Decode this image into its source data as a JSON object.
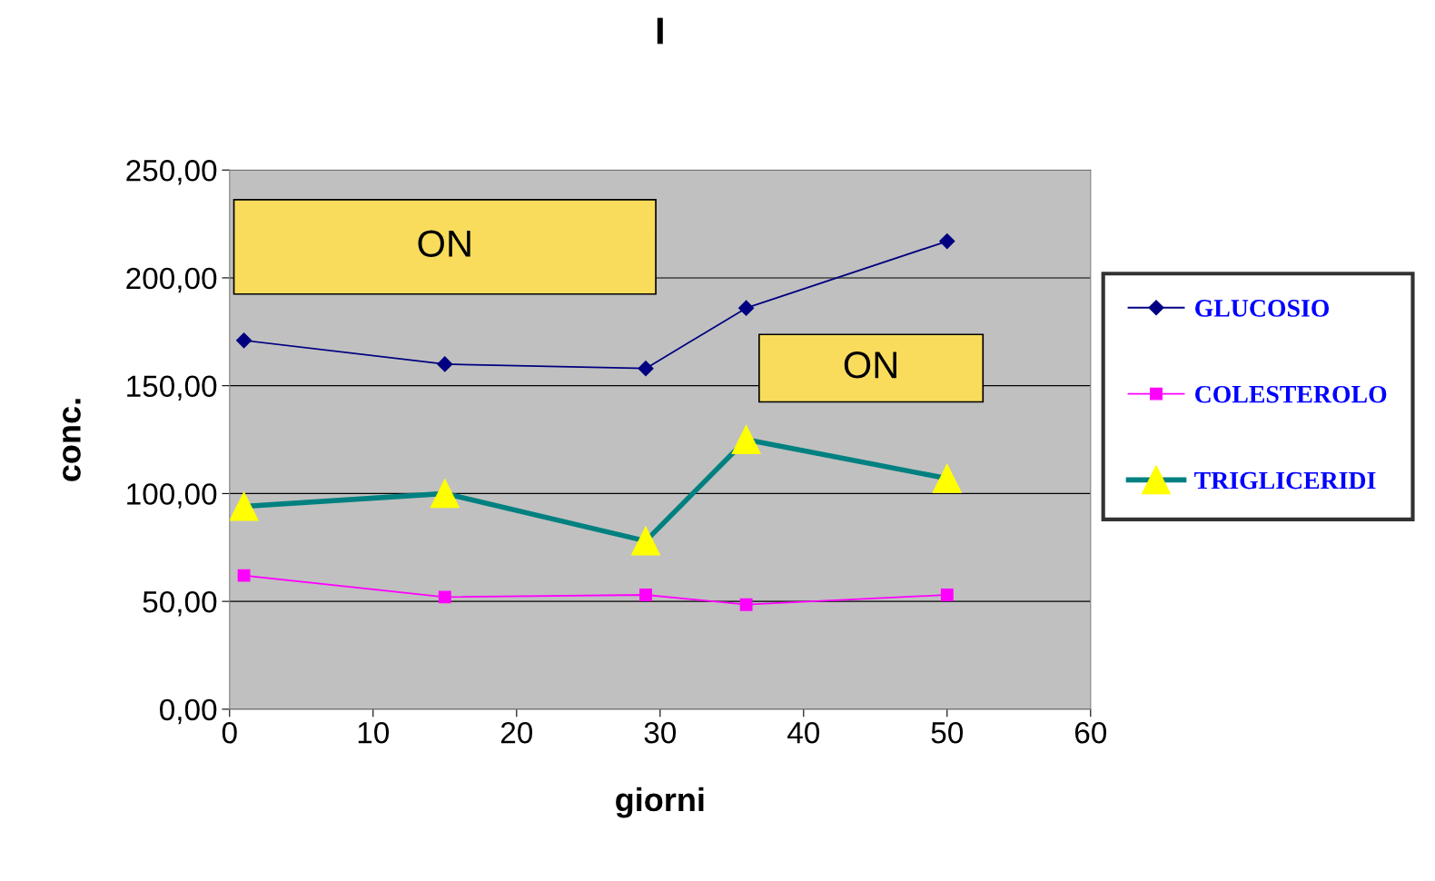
{
  "chart_data": {
    "type": "line",
    "title": "I",
    "xlabel": "giorni",
    "ylabel": "conc.",
    "x": [
      1,
      15,
      29,
      36,
      50
    ],
    "series": [
      {
        "name": "GLUCOSIO",
        "color": "#000080",
        "values": [
          171,
          160,
          158,
          186,
          217
        ],
        "marker": "diamond"
      },
      {
        "name": "COLESTEROLO",
        "color": "#ff00ff",
        "values": [
          62,
          52,
          53,
          48.5,
          53
        ],
        "marker": "square"
      },
      {
        "name": "TRIGLICERIDI",
        "color": "#008080",
        "values": [
          94,
          100,
          78,
          125,
          107
        ],
        "marker": "triangle"
      }
    ],
    "xlim": [
      0,
      60
    ],
    "xticks": [
      0,
      10,
      20,
      30,
      40,
      50,
      60
    ],
    "ylim": [
      0,
      250
    ],
    "yticks": [
      {
        "value": 0,
        "label": "0,00"
      },
      {
        "value": 50,
        "label": "50,00"
      },
      {
        "value": 100,
        "label": "100,00"
      },
      {
        "value": 150,
        "label": "150,00"
      },
      {
        "value": 200,
        "label": "200,00"
      },
      {
        "value": 250,
        "label": "250,00"
      }
    ],
    "grid": "y",
    "legend": "right",
    "annotations": [
      "ON",
      "ON"
    ]
  }
}
